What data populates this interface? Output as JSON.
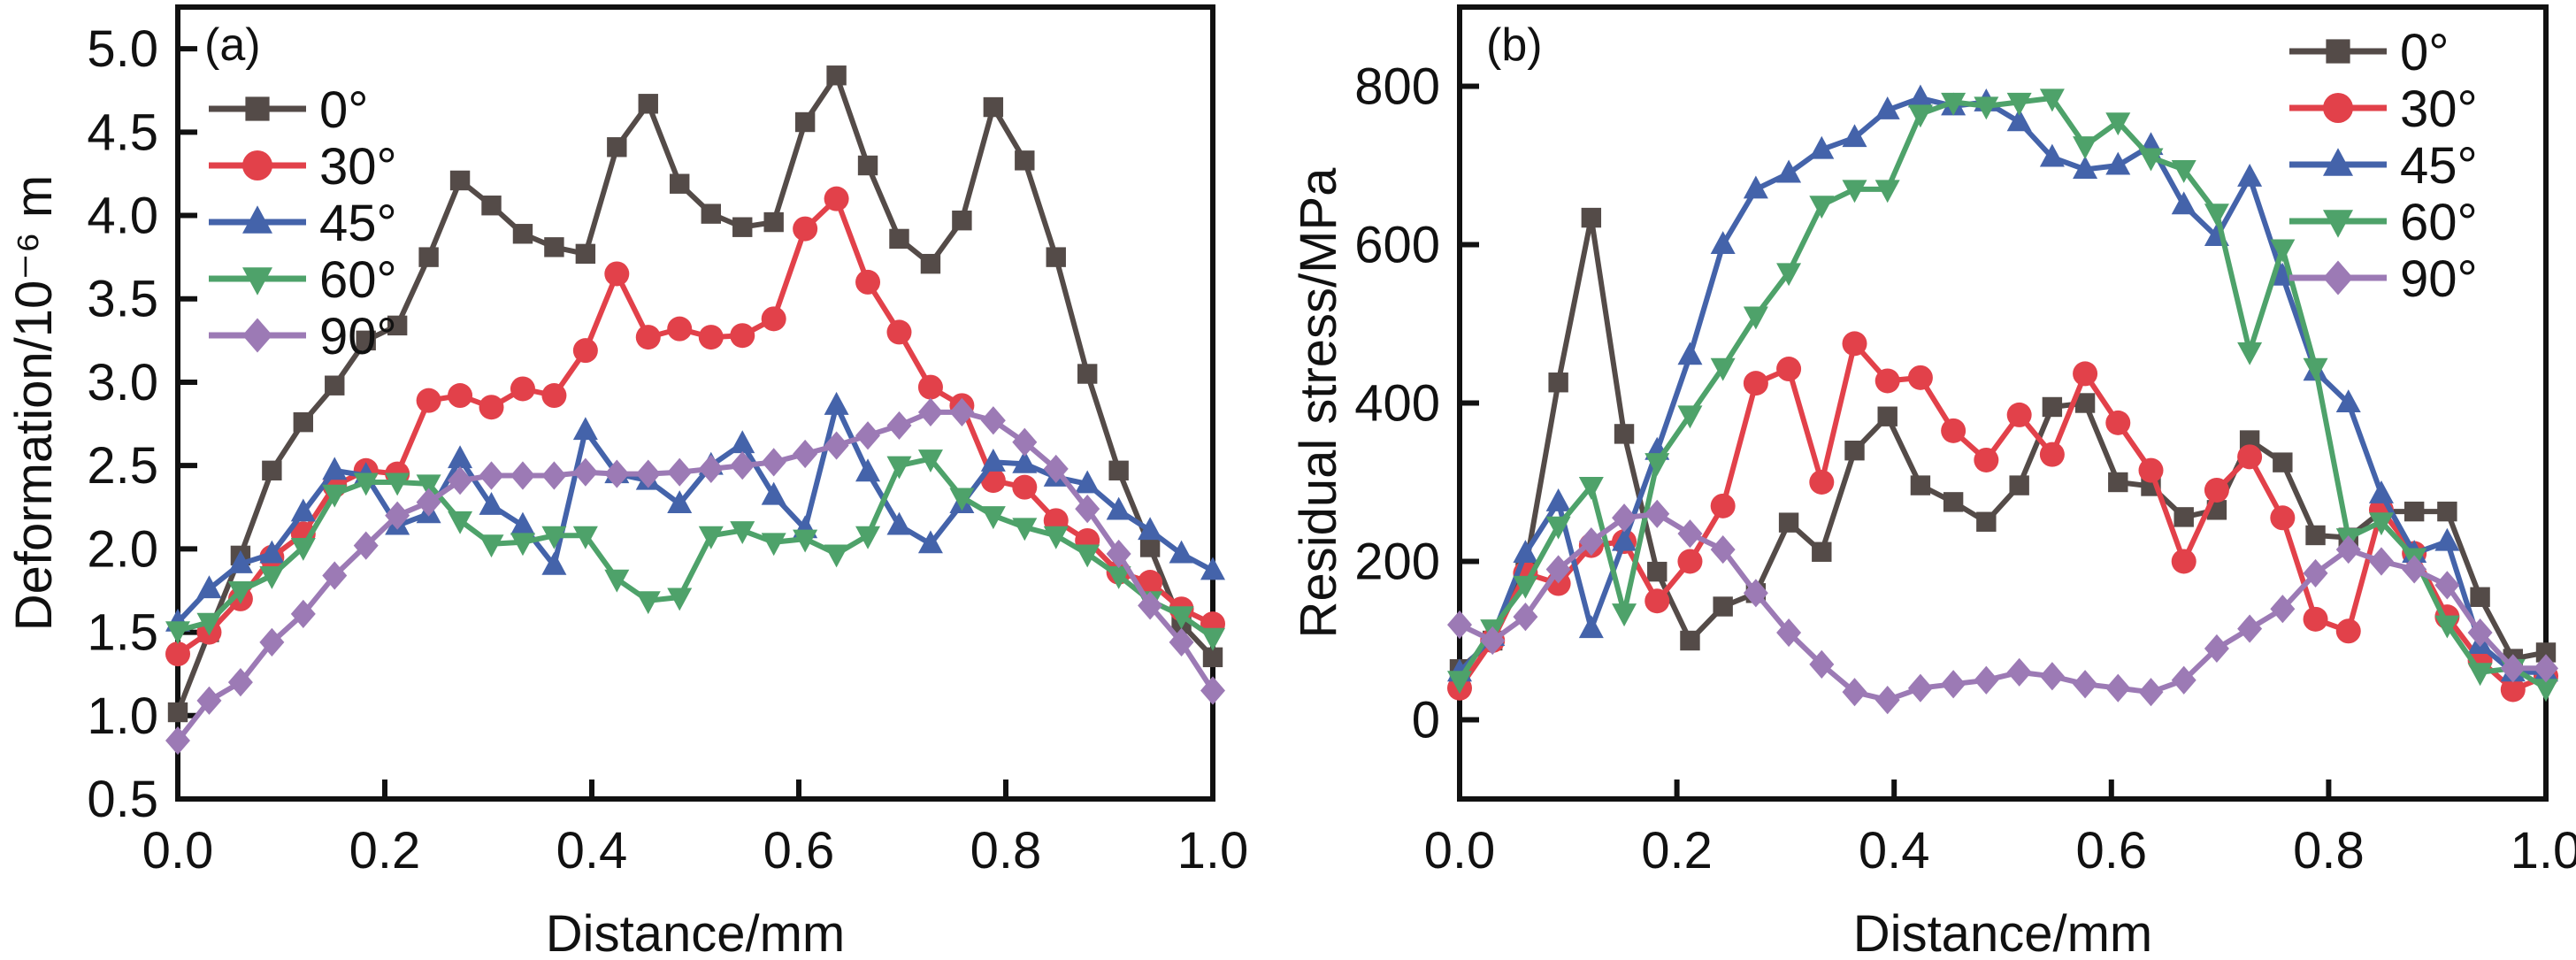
{
  "chart_data": [
    {
      "type": "line",
      "panel_label": "(a)",
      "title": "",
      "xlabel": "Distance/mm",
      "ylabel": "Deformation/10⁻⁶ m",
      "xlim": [
        0.0,
        1.0
      ],
      "ylim": [
        0.5,
        5.25
      ],
      "xticks": [
        0.0,
        0.2,
        0.4,
        0.6,
        0.8,
        1.0
      ],
      "xtick_labels": [
        "0.0",
        "0.2",
        "0.4",
        "0.6",
        "0.8",
        "1.0"
      ],
      "yticks": [
        0.5,
        1.0,
        1.5,
        2.0,
        2.5,
        3.0,
        3.5,
        4.0,
        4.5,
        5.0
      ],
      "ytick_labels": [
        "0.5",
        "1.0",
        "1.5",
        "2.0",
        "2.5",
        "3.0",
        "3.5",
        "4.0",
        "4.5",
        "5.0"
      ],
      "grid": false,
      "legend_position": "top-left",
      "x": [
        0.0,
        0.0303,
        0.0606,
        0.0909,
        0.1212,
        0.1515,
        0.1818,
        0.2121,
        0.2424,
        0.2727,
        0.303,
        0.3333,
        0.3636,
        0.3939,
        0.4242,
        0.4545,
        0.4848,
        0.5152,
        0.5455,
        0.5758,
        0.6061,
        0.6364,
        0.6667,
        0.697,
        0.7273,
        0.7576,
        0.7879,
        0.8182,
        0.8485,
        0.8788,
        0.9091,
        0.9394,
        0.9697,
        1.0
      ],
      "series": [
        {
          "name": "0°",
          "marker": "square",
          "color": "#544b48",
          "values": [
            1.02,
            1.5,
            1.96,
            2.47,
            2.76,
            2.98,
            3.25,
            3.34,
            3.75,
            4.21,
            4.06,
            3.89,
            3.81,
            3.77,
            4.41,
            4.67,
            4.19,
            4.01,
            3.93,
            3.96,
            4.56,
            4.84,
            4.3,
            3.86,
            3.71,
            3.97,
            4.65,
            4.33,
            3.75,
            3.05,
            2.47,
            2.01,
            1.55,
            1.35
          ]
        },
        {
          "name": "30°",
          "marker": "circle",
          "color": "#e2414a",
          "values": [
            1.37,
            1.5,
            1.7,
            1.95,
            2.09,
            2.38,
            2.47,
            2.45,
            2.89,
            2.92,
            2.85,
            2.96,
            2.92,
            3.19,
            3.65,
            3.27,
            3.32,
            3.27,
            3.28,
            3.38,
            3.92,
            4.1,
            3.6,
            3.3,
            2.97,
            2.86,
            2.41,
            2.37,
            2.17,
            2.05,
            1.86,
            1.8,
            1.64,
            1.55
          ]
        },
        {
          "name": "45°",
          "marker": "triangle-up",
          "color": "#4463aa",
          "values": [
            1.56,
            1.76,
            1.91,
            1.97,
            2.22,
            2.47,
            2.44,
            2.14,
            2.21,
            2.54,
            2.26,
            2.14,
            1.9,
            2.71,
            2.45,
            2.41,
            2.27,
            2.5,
            2.63,
            2.32,
            2.12,
            2.86,
            2.46,
            2.14,
            2.03,
            2.27,
            2.52,
            2.51,
            2.43,
            2.39,
            2.23,
            2.11,
            1.97,
            1.87
          ]
        },
        {
          "name": "60°",
          "marker": "triangle-down",
          "color": "#4ea26a",
          "values": [
            1.51,
            1.56,
            1.75,
            1.84,
            2.01,
            2.33,
            2.4,
            2.4,
            2.39,
            2.17,
            2.03,
            2.04,
            2.08,
            2.08,
            1.82,
            1.69,
            1.71,
            2.08,
            2.11,
            2.04,
            2.06,
            1.97,
            2.08,
            2.5,
            2.54,
            2.31,
            2.2,
            2.13,
            2.08,
            1.97,
            1.84,
            1.69,
            1.6,
            1.47
          ]
        },
        {
          "name": "90°",
          "marker": "diamond",
          "color": "#9c7ab5",
          "values": [
            0.85,
            1.09,
            1.2,
            1.44,
            1.61,
            1.84,
            2.02,
            2.2,
            2.28,
            2.41,
            2.44,
            2.44,
            2.44,
            2.46,
            2.45,
            2.45,
            2.46,
            2.48,
            2.5,
            2.52,
            2.57,
            2.62,
            2.68,
            2.74,
            2.82,
            2.82,
            2.77,
            2.64,
            2.48,
            2.24,
            1.97,
            1.66,
            1.44,
            1.15
          ]
        }
      ]
    },
    {
      "type": "line",
      "panel_label": "(b)",
      "title": "",
      "xlabel": "Distance/mm",
      "ylabel": "Residual stress/MPa",
      "xlim": [
        0.0,
        1.0
      ],
      "ylim": [
        -100,
        900
      ],
      "xticks": [
        0.0,
        0.2,
        0.4,
        0.6,
        0.8,
        1.0
      ],
      "xtick_labels": [
        "0.0",
        "0.2",
        "0.4",
        "0.6",
        "0.8",
        "1.0"
      ],
      "yticks": [
        0,
        200,
        400,
        600,
        800
      ],
      "ytick_labels": [
        "0",
        "200",
        "400",
        "600",
        "800"
      ],
      "grid": false,
      "legend_position": "top-right",
      "x": [
        0.0,
        0.0303,
        0.0606,
        0.0909,
        0.1212,
        0.1515,
        0.1818,
        0.2121,
        0.2424,
        0.2727,
        0.303,
        0.3333,
        0.3636,
        0.3939,
        0.4242,
        0.4545,
        0.4848,
        0.5152,
        0.5455,
        0.5758,
        0.6061,
        0.6364,
        0.6667,
        0.697,
        0.7273,
        0.7576,
        0.7879,
        0.8182,
        0.8485,
        0.8788,
        0.9091,
        0.9394,
        0.9697,
        1.0
      ],
      "series": [
        {
          "name": "0°",
          "marker": "square",
          "color": "#544b48",
          "values": [
            64,
            100,
            190,
            426,
            634,
            361,
            187,
            100,
            143,
            160,
            249,
            212,
            340,
            383,
            296,
            275,
            250,
            296,
            395,
            400,
            300,
            295,
            256,
            265,
            353,
            325,
            233,
            230,
            263,
            263,
            263,
            155,
            77,
            85
          ]
        },
        {
          "name": "30°",
          "marker": "circle",
          "color": "#e2414a",
          "values": [
            40,
            100,
            185,
            172,
            220,
            225,
            150,
            200,
            270,
            425,
            443,
            300,
            475,
            428,
            432,
            365,
            328,
            385,
            335,
            437,
            375,
            315,
            200,
            290,
            332,
            255,
            127,
            112,
            265,
            210,
            130,
            75,
            38,
            55
          ]
        },
        {
          "name": "45°",
          "marker": "triangle-up",
          "color": "#4463aa",
          "values": [
            60,
            105,
            210,
            275,
            115,
            225,
            340,
            460,
            600,
            670,
            690,
            720,
            735,
            770,
            785,
            775,
            780,
            755,
            710,
            695,
            700,
            725,
            650,
            610,
            685,
            560,
            440,
            400,
            285,
            210,
            225,
            95,
            60,
            60
          ]
        },
        {
          "name": "60°",
          "marker": "triangle-down",
          "color": "#4ea26a",
          "values": [
            50,
            115,
            170,
            245,
            295,
            135,
            325,
            385,
            445,
            510,
            565,
            650,
            670,
            670,
            765,
            780,
            775,
            780,
            785,
            725,
            755,
            710,
            695,
            640,
            465,
            595,
            445,
            230,
            250,
            205,
            120,
            60,
            65,
            40
          ]
        },
        {
          "name": "90°",
          "marker": "diamond",
          "color": "#9c7ab5",
          "values": [
            120,
            100,
            130,
            190,
            225,
            255,
            260,
            235,
            215,
            160,
            110,
            70,
            35,
            25,
            40,
            45,
            50,
            60,
            55,
            45,
            40,
            35,
            50,
            90,
            115,
            140,
            185,
            215,
            200,
            190,
            170,
            110,
            65,
            65
          ]
        }
      ]
    }
  ]
}
